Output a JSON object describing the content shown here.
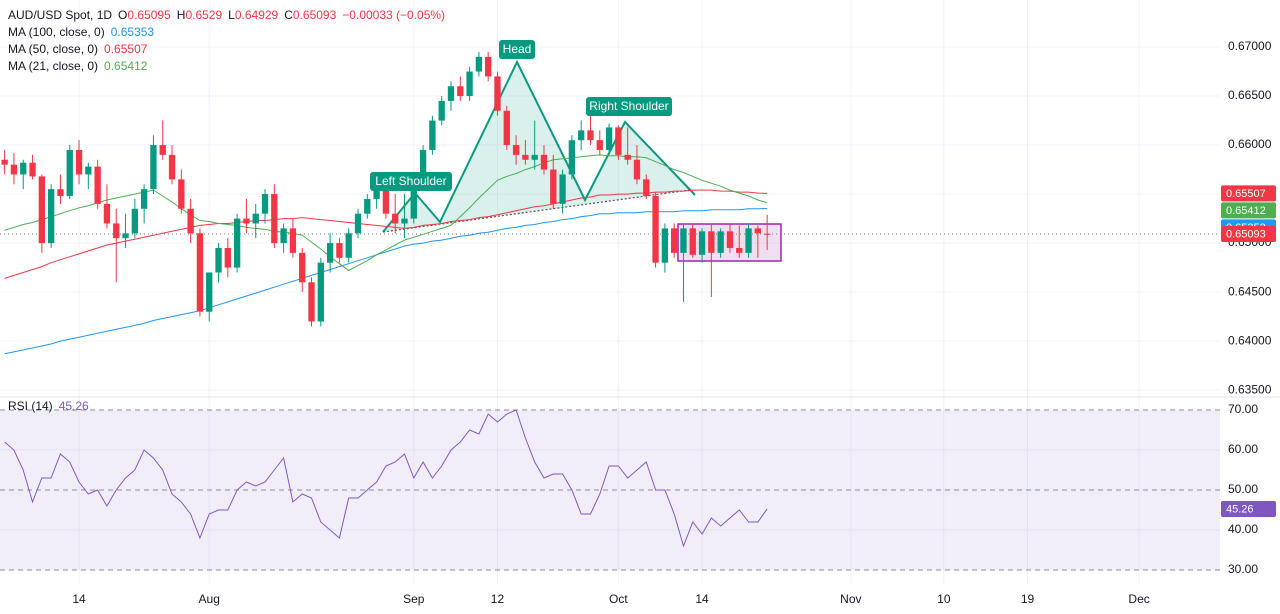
{
  "chart_data": {
    "type": "candlestick",
    "title": "AUD/USD Spot, 1D",
    "ohlc_letters": [
      "O",
      "H",
      "L",
      "C"
    ],
    "change": "−0.00033 (−0.05%)",
    "xlim": [
      -0.5,
      130.7
    ],
    "xticks": [
      {
        "value": 8,
        "label": "14"
      },
      {
        "value": 22,
        "label": "Aug"
      },
      {
        "value": 44,
        "label": "Sep"
      },
      {
        "value": 53,
        "label": "12"
      },
      {
        "value": 66,
        "label": "Oct"
      },
      {
        "value": 75,
        "label": "14"
      },
      {
        "value": 91,
        "label": "Nov"
      },
      {
        "value": 101,
        "label": "10"
      },
      {
        "value": 110,
        "label": "19"
      },
      {
        "value": 122,
        "label": "Dec"
      }
    ],
    "ylim": [
      0.6345,
      0.6748
    ],
    "yticks": [
      {
        "value": 0.67,
        "label": "0.67000"
      },
      {
        "value": 0.665,
        "label": "0.66500"
      },
      {
        "value": 0.66,
        "label": "0.66000"
      },
      {
        "value": 0.655,
        "label": "0.65500"
      },
      {
        "value": 0.65,
        "label": "0.65000"
      },
      {
        "value": 0.645,
        "label": "0.64500"
      },
      {
        "value": 0.64,
        "label": "0.64000"
      },
      {
        "value": 0.635,
        "label": "0.63500"
      }
    ],
    "grid": true,
    "up_color": "#089981",
    "down_color": "#f23645",
    "candles": {
      "open": [
        0.6585,
        0.658,
        0.657,
        0.6582,
        0.6568,
        0.65,
        0.6555,
        0.6548,
        0.6595,
        0.657,
        0.6578,
        0.654,
        0.652,
        0.6505,
        0.651,
        0.6535,
        0.6555,
        0.66,
        0.659,
        0.6565,
        0.6535,
        0.651,
        0.643,
        0.647,
        0.6495,
        0.6475,
        0.6525,
        0.652,
        0.653,
        0.655,
        0.65,
        0.6515,
        0.649,
        0.646,
        0.642,
        0.648,
        0.65,
        0.6485,
        0.651,
        0.653,
        0.6545,
        0.6555,
        0.653,
        0.652,
        0.6525,
        0.656,
        0.6595,
        0.6625,
        0.6645,
        0.666,
        0.665,
        0.6675,
        0.669,
        0.667,
        0.6635,
        0.66,
        0.659,
        0.6585,
        0.659,
        0.6575,
        0.654,
        0.657,
        0.6605,
        0.6615,
        0.6605,
        0.6595,
        0.6618,
        0.659,
        0.6585,
        0.6565,
        0.6548,
        0.648,
        0.6515,
        0.649,
        0.6515,
        0.6488,
        0.6512,
        0.649,
        0.6512,
        0.6495,
        0.649,
        0.6515,
        0.65095
      ],
      "high": [
        0.6595,
        0.6592,
        0.6585,
        0.659,
        0.657,
        0.656,
        0.657,
        0.66,
        0.6605,
        0.6582,
        0.6585,
        0.656,
        0.6535,
        0.653,
        0.6545,
        0.656,
        0.661,
        0.6625,
        0.66,
        0.6575,
        0.6545,
        0.6515,
        0.647,
        0.65,
        0.6505,
        0.653,
        0.6545,
        0.654,
        0.6555,
        0.656,
        0.652,
        0.6525,
        0.6495,
        0.6465,
        0.6485,
        0.651,
        0.6505,
        0.6515,
        0.6535,
        0.655,
        0.656,
        0.656,
        0.655,
        0.655,
        0.6565,
        0.66,
        0.663,
        0.665,
        0.6665,
        0.667,
        0.668,
        0.6695,
        0.6695,
        0.6675,
        0.664,
        0.661,
        0.6605,
        0.6625,
        0.66,
        0.659,
        0.6575,
        0.661,
        0.6625,
        0.663,
        0.6615,
        0.6622,
        0.662,
        0.6618,
        0.66,
        0.657,
        0.6552,
        0.652,
        0.652,
        0.652,
        0.652,
        0.6515,
        0.652,
        0.6515,
        0.652,
        0.6518,
        0.652,
        0.6518,
        0.6529
      ],
      "low": [
        0.657,
        0.656,
        0.6555,
        0.6565,
        0.649,
        0.6495,
        0.654,
        0.6545,
        0.656,
        0.6555,
        0.6535,
        0.6515,
        0.646,
        0.6495,
        0.6505,
        0.652,
        0.655,
        0.6585,
        0.656,
        0.653,
        0.65,
        0.6425,
        0.642,
        0.646,
        0.6465,
        0.647,
        0.651,
        0.6505,
        0.652,
        0.6495,
        0.649,
        0.6485,
        0.645,
        0.6415,
        0.6415,
        0.647,
        0.648,
        0.648,
        0.6505,
        0.6525,
        0.6535,
        0.6525,
        0.651,
        0.6505,
        0.652,
        0.6555,
        0.659,
        0.662,
        0.6635,
        0.6645,
        0.6645,
        0.667,
        0.6665,
        0.663,
        0.6595,
        0.658,
        0.658,
        0.6575,
        0.657,
        0.6535,
        0.653,
        0.6565,
        0.6595,
        0.66,
        0.659,
        0.659,
        0.6585,
        0.658,
        0.656,
        0.6545,
        0.6475,
        0.647,
        0.6485,
        0.644,
        0.6485,
        0.648,
        0.6445,
        0.6485,
        0.649,
        0.6485,
        0.6485,
        0.6485,
        0.64929
      ],
      "close": [
        0.658,
        0.657,
        0.6582,
        0.6568,
        0.65,
        0.6555,
        0.6548,
        0.6595,
        0.657,
        0.6578,
        0.654,
        0.652,
        0.6505,
        0.651,
        0.6535,
        0.6555,
        0.66,
        0.659,
        0.6565,
        0.6535,
        0.651,
        0.643,
        0.647,
        0.6495,
        0.6475,
        0.6525,
        0.652,
        0.653,
        0.655,
        0.65,
        0.6515,
        0.649,
        0.646,
        0.642,
        0.648,
        0.65,
        0.6485,
        0.651,
        0.653,
        0.6545,
        0.6555,
        0.653,
        0.652,
        0.6525,
        0.656,
        0.6595,
        0.6625,
        0.6645,
        0.666,
        0.665,
        0.6675,
        0.669,
        0.667,
        0.6635,
        0.66,
        0.659,
        0.6585,
        0.659,
        0.6575,
        0.654,
        0.657,
        0.6605,
        0.6615,
        0.6605,
        0.6595,
        0.6618,
        0.659,
        0.6585,
        0.6565,
        0.6548,
        0.648,
        0.6515,
        0.649,
        0.6515,
        0.6488,
        0.6512,
        0.649,
        0.6512,
        0.6495,
        0.649,
        0.6515,
        0.651,
        0.65093
      ]
    },
    "series": [
      {
        "name": "MA (100, close, 0)",
        "color": "#2196f3",
        "values": [
          0.6387,
          0.6389,
          0.6391,
          0.6393,
          0.6395,
          0.6397,
          0.64,
          0.6402,
          0.6404,
          0.6406,
          0.6408,
          0.641,
          0.6412,
          0.6414,
          0.6416,
          0.6418,
          0.6421,
          0.6423,
          0.6425,
          0.6427,
          0.6429,
          0.6431,
          0.6434,
          0.6437,
          0.644,
          0.6443,
          0.6446,
          0.6449,
          0.6452,
          0.6455,
          0.6458,
          0.6461,
          0.6464,
          0.6467,
          0.647,
          0.6473,
          0.6476,
          0.6479,
          0.6482,
          0.6485,
          0.6488,
          0.6491,
          0.6494,
          0.6497,
          0.6499,
          0.65,
          0.6502,
          0.6503,
          0.6505,
          0.6507,
          0.6508,
          0.651,
          0.6511,
          0.6513,
          0.6515,
          0.6516,
          0.6518,
          0.6519,
          0.6521,
          0.6522,
          0.6524,
          0.6525,
          0.6527,
          0.6528,
          0.653,
          0.653,
          0.6531,
          0.6531,
          0.6531,
          0.6532,
          0.6532,
          0.6532,
          0.6532,
          0.6533,
          0.6533,
          0.6533,
          0.6534,
          0.6534,
          0.6534,
          0.6534,
          0.6535,
          0.6535,
          0.65353
        ]
      },
      {
        "name": "MA (50, close, 0)",
        "color": "#f23645",
        "values": [
          0.6464,
          0.6467,
          0.647,
          0.6473,
          0.6476,
          0.648,
          0.6483,
          0.6486,
          0.6489,
          0.6492,
          0.6495,
          0.6498,
          0.65,
          0.6502,
          0.6504,
          0.6506,
          0.6508,
          0.651,
          0.6512,
          0.6514,
          0.6516,
          0.6518,
          0.6519,
          0.652,
          0.652,
          0.6521,
          0.6522,
          0.6523,
          0.6523,
          0.6524,
          0.6525,
          0.6525,
          0.6526,
          0.6525,
          0.6524,
          0.6523,
          0.6522,
          0.6521,
          0.652,
          0.6519,
          0.6518,
          0.6517,
          0.6516,
          0.6515,
          0.6516,
          0.6518,
          0.6519,
          0.652,
          0.6522,
          0.6523,
          0.6524,
          0.6526,
          0.6527,
          0.6529,
          0.6531,
          0.6533,
          0.6535,
          0.6537,
          0.6538,
          0.654,
          0.6542,
          0.6544,
          0.6546,
          0.6547,
          0.6549,
          0.6549,
          0.655,
          0.655,
          0.6551,
          0.6551,
          0.6552,
          0.6552,
          0.6553,
          0.6553,
          0.6554,
          0.6554,
          0.6554,
          0.6553,
          0.6553,
          0.6552,
          0.6552,
          0.6551,
          0.65507
        ]
      },
      {
        "name": "MA (21, close, 0)",
        "color": "#4caf50",
        "values": [
          0.6513,
          0.6516,
          0.6519,
          0.6521,
          0.6524,
          0.6527,
          0.653,
          0.6533,
          0.6536,
          0.6538,
          0.6541,
          0.6544,
          0.6546,
          0.6548,
          0.655,
          0.6552,
          0.6554,
          0.6548,
          0.6542,
          0.6535,
          0.6529,
          0.6523,
          0.6522,
          0.652,
          0.6519,
          0.6518,
          0.6516,
          0.6515,
          0.6514,
          0.6512,
          0.6511,
          0.651,
          0.6508,
          0.6501,
          0.6494,
          0.6486,
          0.6479,
          0.6472,
          0.6477,
          0.6482,
          0.6488,
          0.6493,
          0.6498,
          0.6503,
          0.6506,
          0.6509,
          0.6512,
          0.6515,
          0.6518,
          0.6527,
          0.6536,
          0.6546,
          0.6555,
          0.6564,
          0.6568,
          0.6571,
          0.6575,
          0.6578,
          0.6582,
          0.6585,
          0.6586,
          0.6587,
          0.6588,
          0.6589,
          0.659,
          0.6589,
          0.6589,
          0.6588,
          0.6588,
          0.6587,
          0.6583,
          0.6579,
          0.6575,
          0.6572,
          0.6568,
          0.6564,
          0.6561,
          0.6558,
          0.6554,
          0.6551,
          0.6548,
          0.6544,
          0.65412
        ]
      }
    ],
    "annotations": [
      "Left Shoulder",
      "Head",
      "Right Shoulder"
    ],
    "rsi": {
      "name": "RSI (14)",
      "color": "#7e57c2",
      "values": [
        62,
        60,
        55,
        47,
        53,
        53,
        59,
        57,
        52,
        49,
        50,
        46,
        50,
        53,
        55,
        60,
        58,
        55,
        49,
        47,
        44,
        38,
        44,
        45,
        45,
        50,
        52,
        51,
        52,
        55,
        58,
        47,
        49,
        48,
        42,
        40,
        38,
        48,
        48,
        50,
        52,
        56,
        57,
        59,
        53,
        57,
        53,
        56,
        60,
        62,
        65,
        64,
        69,
        67,
        69,
        70,
        63,
        57,
        53,
        54,
        54,
        50,
        44,
        44,
        49,
        56,
        56,
        53,
        55,
        57,
        50,
        50,
        44,
        36,
        42,
        39,
        43,
        41,
        43,
        45,
        42,
        42,
        45.26
      ],
      "ylim": [
        26.25,
        72.5
      ],
      "yticks": [
        {
          "value": 70,
          "label": "70.00"
        },
        {
          "value": 60,
          "label": "60.00"
        },
        {
          "value": 50,
          "label": "50.00"
        },
        {
          "value": 40,
          "label": "40.00"
        },
        {
          "value": 30,
          "label": "30.00"
        }
      ]
    }
  }
}
